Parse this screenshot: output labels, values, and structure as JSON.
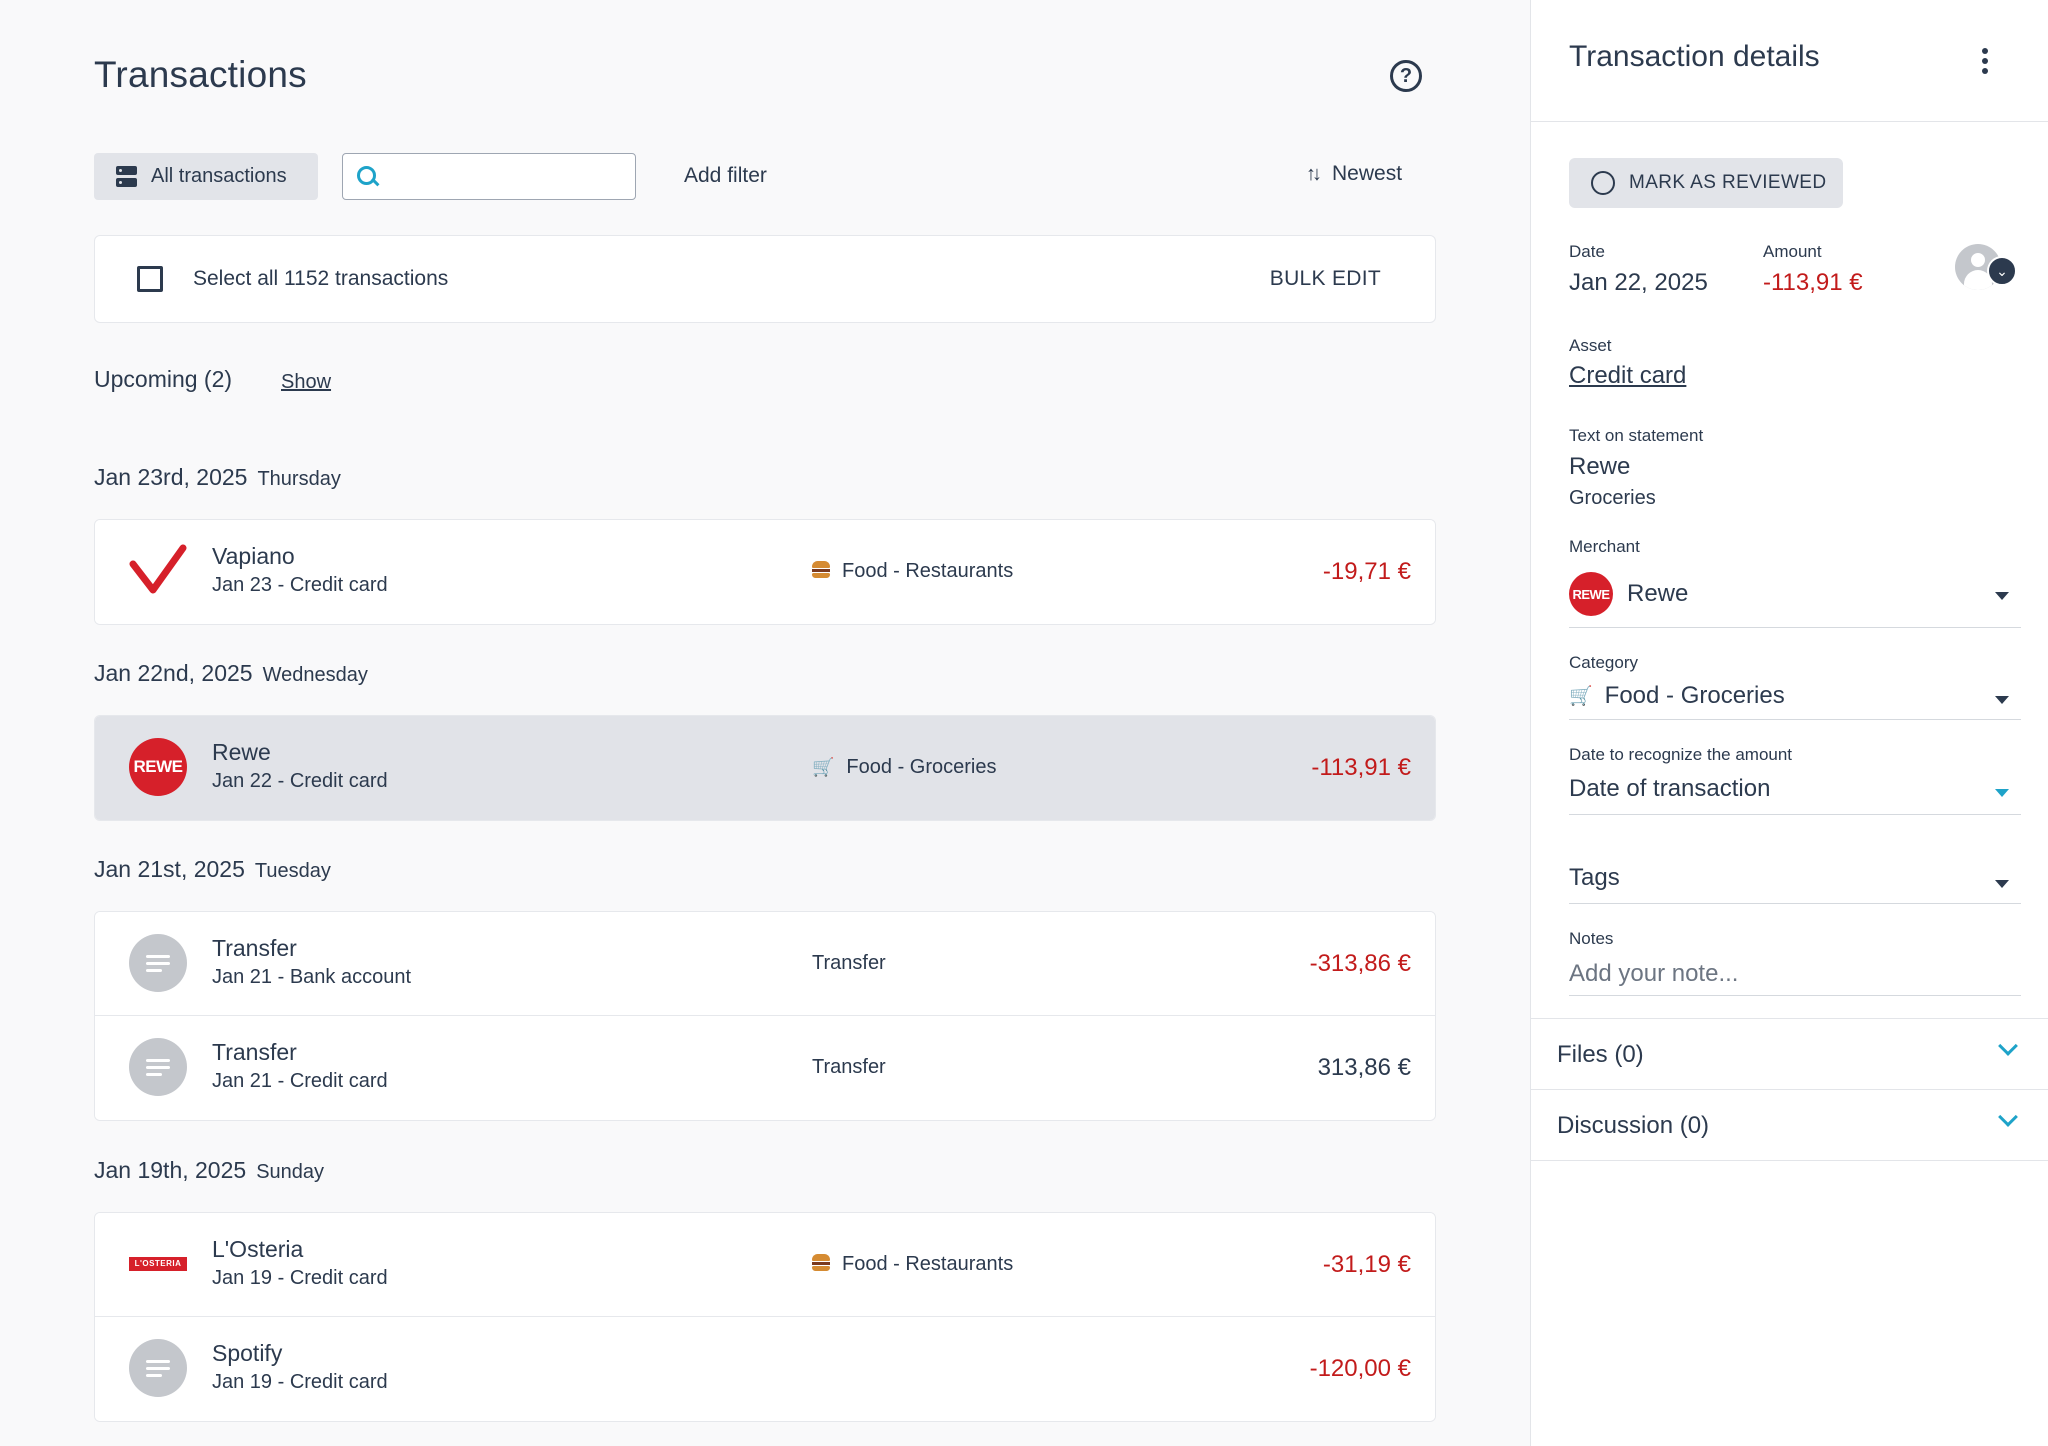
{
  "main": {
    "title": "Transactions",
    "toolbar": {
      "all_label": "All transactions",
      "search_placeholder": "",
      "add_filter": "Add filter",
      "sort_label": "Newest"
    },
    "select_all": "Select all 1152 transactions",
    "bulk_edit": "BULK EDIT",
    "upcoming": "Upcoming (2)",
    "show": "Show",
    "groups": [
      {
        "date": "Jan 23rd, 2025",
        "weekday": "Thursday",
        "rows": [
          {
            "name": "Vapiano",
            "sub": "Jan 23 - Credit card",
            "category": "Food - Restaurants",
            "amount": "-19,71 €"
          }
        ]
      },
      {
        "date": "Jan 22nd, 2025",
        "weekday": "Wednesday",
        "rows": [
          {
            "name": "Rewe",
            "sub": "Jan 22 - Credit card",
            "category": "Food - Groceries",
            "amount": "-113,91 €",
            "logo_text": "REWE"
          }
        ]
      },
      {
        "date": "Jan 21st, 2025",
        "weekday": "Tuesday",
        "rows": [
          {
            "name": "Transfer",
            "sub": "Jan 21 - Bank account",
            "category": "Transfer",
            "amount": "-313,86 €"
          },
          {
            "name": "Transfer",
            "sub": "Jan 21 - Credit card",
            "category": "Transfer",
            "amount": "313,86 €"
          }
        ]
      },
      {
        "date": "Jan 19th, 2025",
        "weekday": "Sunday",
        "rows": [
          {
            "name": "L'Osteria",
            "sub": "Jan 19 - Credit card",
            "category": "Food - Restaurants",
            "amount": "-31,19 €",
            "logo_text": "L'OSTERIA"
          },
          {
            "name": "Spotify",
            "sub": "Jan 19 - Credit card",
            "category": "",
            "amount": "-120,00 €"
          }
        ]
      }
    ]
  },
  "details": {
    "title": "Transaction details",
    "mark_reviewed": "MARK AS REVIEWED",
    "date_label": "Date",
    "date_value": "Jan 22, 2025",
    "amount_label": "Amount",
    "amount_value": "-113,91 €",
    "asset_label": "Asset",
    "asset_value": "Credit card",
    "statement_label": "Text on statement",
    "statement_value": "Rewe",
    "statement_sub": "Groceries",
    "merchant_label": "Merchant",
    "merchant_value": "Rewe",
    "merchant_logo_text": "REWE",
    "category_label": "Category",
    "category_value": "Food - Groceries",
    "recognize_label": "Date to recognize the amount",
    "recognize_value": "Date of transaction",
    "tags_label": "Tags",
    "notes_label": "Notes",
    "notes_placeholder": "Add your note...",
    "files": "Files (0)",
    "discussion": "Discussion (0)"
  },
  "colors": {
    "negative": "#c21b1b",
    "accent": "#1ea3c9",
    "text": "#2c3a4e",
    "selected_row": "#e1e3e8",
    "rewe_red": "#d6202a"
  }
}
